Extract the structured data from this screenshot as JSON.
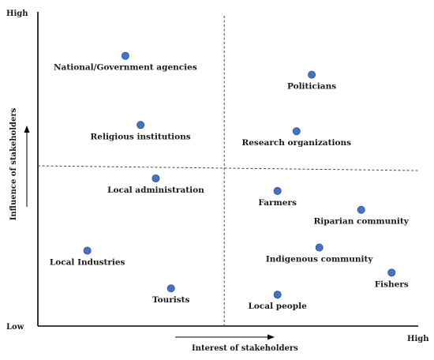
{
  "chart_data": {
    "type": "scatter",
    "title": "",
    "xlabel": "Interest of stakeholders",
    "ylabel": "Influence of stakeholders",
    "xlim": [
      0,
      10
    ],
    "ylim": [
      0,
      10
    ],
    "x_high_label": "High",
    "y_high_label": "High",
    "low_label": "Low",
    "grid": false,
    "quadrant_dividers": {
      "x": 4.9,
      "y": 5.1
    },
    "marker_color": "#4472c4",
    "points": [
      {
        "name": "National/Government agencies",
        "x": 2.3,
        "y": 8.6,
        "label_pos": "below"
      },
      {
        "name": "Politicians",
        "x": 7.2,
        "y": 8.0,
        "label_pos": "below"
      },
      {
        "name": "Religious institutions",
        "x": 2.7,
        "y": 6.4,
        "label_pos": "below"
      },
      {
        "name": "Research organizations",
        "x": 6.8,
        "y": 6.2,
        "label_pos": "below"
      },
      {
        "name": "Local administration",
        "x": 3.1,
        "y": 4.7,
        "label_pos": "below"
      },
      {
        "name": "Farmers",
        "x": 6.3,
        "y": 4.3,
        "label_pos": "below"
      },
      {
        "name": "Riparian community",
        "x": 8.5,
        "y": 3.7,
        "label_pos": "below"
      },
      {
        "name": "Local Industries",
        "x": 1.3,
        "y": 2.4,
        "label_pos": "below"
      },
      {
        "name": "Indigenous community",
        "x": 7.4,
        "y": 2.5,
        "label_pos": "below"
      },
      {
        "name": "Fishers",
        "x": 9.3,
        "y": 1.7,
        "label_pos": "below"
      },
      {
        "name": "Tourists",
        "x": 3.5,
        "y": 1.2,
        "label_pos": "below"
      },
      {
        "name": "Local people",
        "x": 6.3,
        "y": 1.0,
        "label_pos": "below"
      }
    ]
  }
}
